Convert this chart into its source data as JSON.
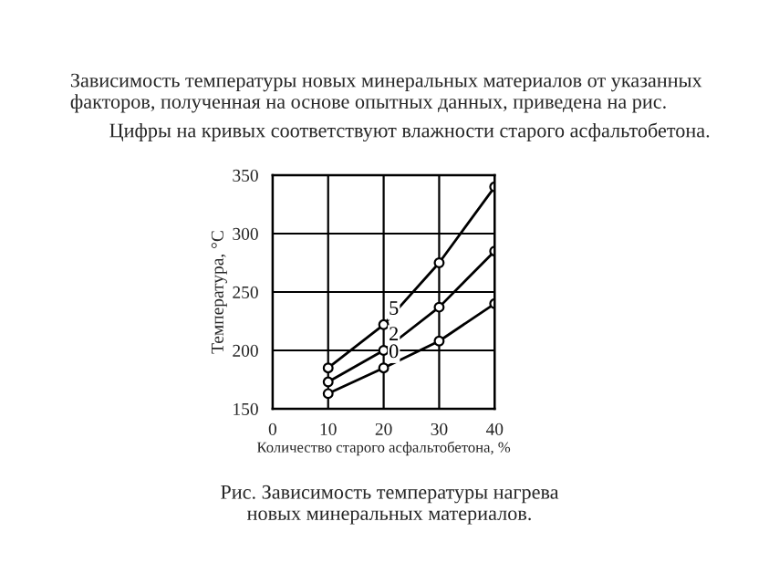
{
  "chart_data": {
    "type": "line",
    "title": "Зависимость температуры новых минеральных материалов от указанных факторов, полученная на основе опытных данных, приведена на рис.",
    "subtitle": "Цифры на кривых соответствуют влажности старого асфальтобетона.",
    "xlabel": "Количество старого асфальтобетона, %",
    "ylabel": "Температура, °С",
    "annotations": [
      "Рис. Зависимость температуры нагрева\nновых минеральных материалов."
    ],
    "x": [
      10,
      20,
      30,
      40
    ],
    "series": [
      {
        "name": "5",
        "color": "#000000",
        "values": [
          185,
          222,
          275,
          340
        ]
      },
      {
        "name": "2",
        "color": "#000000",
        "values": [
          173,
          200,
          237,
          285
        ]
      },
      {
        "name": "0",
        "color": "#000000",
        "values": [
          163,
          185,
          208,
          240
        ]
      }
    ],
    "xlim": [
      0,
      40
    ],
    "ylim": [
      150,
      350
    ],
    "xticks": [
      0,
      10,
      20,
      30,
      40
    ],
    "yticks": [
      150,
      200,
      250,
      300,
      350
    ],
    "grid": true,
    "marker": "circle",
    "line_style": "solid",
    "legend": false
  }
}
